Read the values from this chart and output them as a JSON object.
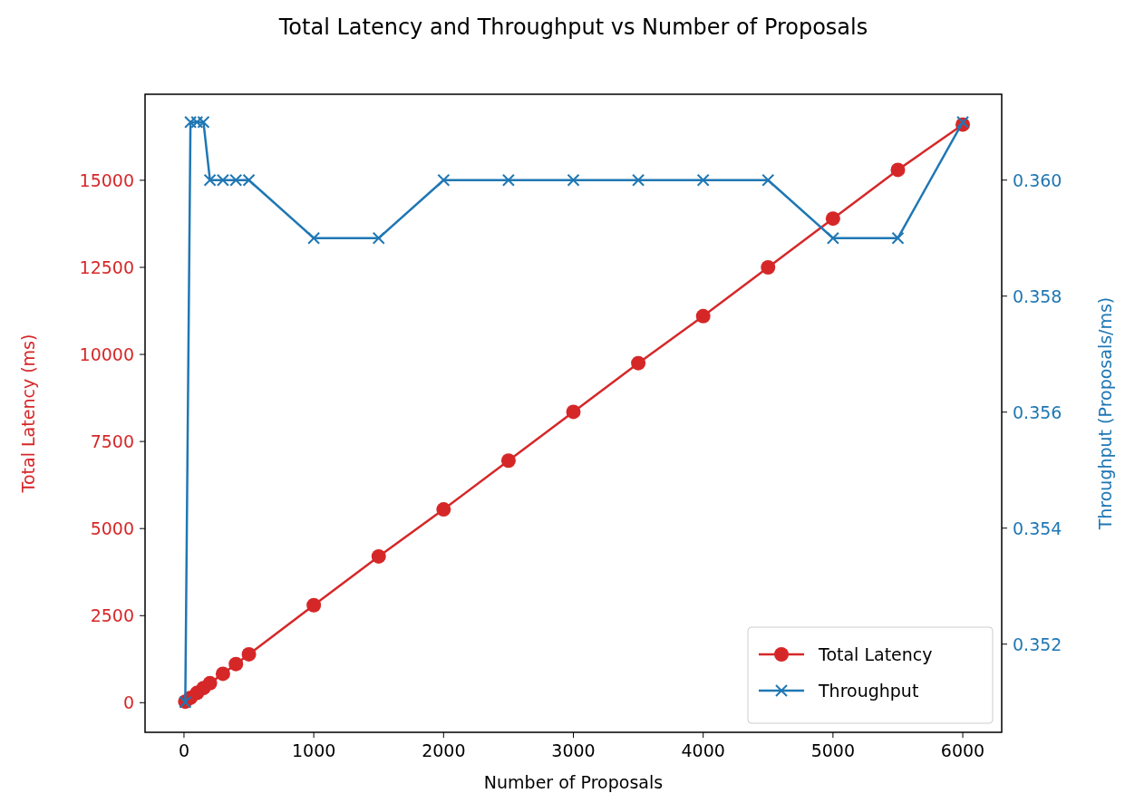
{
  "chart_data": {
    "type": "line",
    "title": "Total Latency and Throughput vs Number of Proposals",
    "xlabel": "Number of Proposals",
    "ylabel": "Total Latency (ms)",
    "y2label": "Throughput (Proposals/ms)",
    "x": [
      10,
      50,
      100,
      150,
      200,
      300,
      400,
      500,
      1000,
      1500,
      2000,
      2500,
      3000,
      3500,
      4000,
      4500,
      5000,
      5500,
      6000
    ],
    "series": [
      {
        "name": "Total Latency",
        "color": "#d62728",
        "marker": "circle",
        "values": [
          30,
          140,
          280,
          420,
          560,
          830,
          1110,
          1390,
          2800,
          4200,
          5550,
          6950,
          8350,
          9750,
          11100,
          12500,
          13900,
          15300,
          16600
        ]
      },
      {
        "name": "Throughput",
        "color": "#1f77b4",
        "marker": "cross",
        "axis": "y2",
        "values": [
          0.351,
          0.361,
          0.361,
          0.361,
          0.36,
          0.36,
          0.36,
          0.36,
          0.359,
          0.359,
          0.36,
          0.36,
          0.36,
          0.36,
          0.36,
          0.36,
          0.359,
          0.359,
          0.361
        ]
      }
    ],
    "xlim": [
      -300,
      6300
    ],
    "xticks": [
      0,
      1000,
      2000,
      3000,
      4000,
      5000,
      6000
    ],
    "ylim": [
      -850,
      17470
    ],
    "yticks": [
      0,
      2500,
      5000,
      7500,
      10000,
      12500,
      15000
    ],
    "y2lim": [
      0.35048,
      0.36148
    ],
    "y2ticks": [
      {
        "value": 0.352,
        "label": "0.352"
      },
      {
        "value": 0.354,
        "label": "0.354"
      },
      {
        "value": 0.356,
        "label": "0.356"
      },
      {
        "value": 0.358,
        "label": "0.358"
      },
      {
        "value": 0.36,
        "label": "0.360"
      }
    ],
    "legend": "bottom right",
    "grid": false
  }
}
